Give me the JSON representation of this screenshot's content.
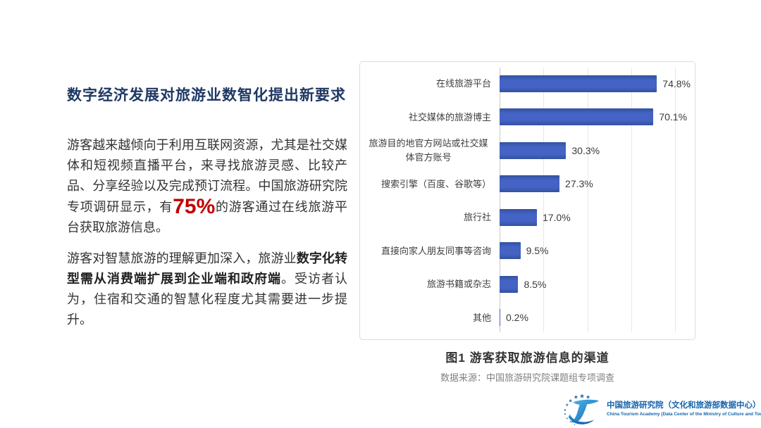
{
  "slide": {
    "title": "数字经济发展对旅游业数智化提出新要求",
    "paragraph1": {
      "before": "游客越来越倾向于利用互联网资源，尤其是社交媒体和短视频直播平台，来寻找旅游灵感、比较产品、分享经验以及完成预订流程。中国旅游研究院专项调研显示，有",
      "highlight": "75%",
      "after": "的游客通过在线旅游平台获取旅游信息。"
    },
    "paragraph2": {
      "before": "游客对智慧旅游的理解更加深入，旅游业",
      "bold": "数字化转型需从消费端扩展到企业端和政府端",
      "after": "。受访者认为，住宿和交通的智慧化程度尤其需要进一步提升。"
    }
  },
  "chart_data": {
    "type": "bar",
    "orientation": "horizontal",
    "title": "图1  游客获取旅游信息的渠道",
    "source": "数据来源：中国旅游研究院课题组专项调查",
    "categories": [
      "在线旅游平台",
      "社交媒体的旅游博主",
      "旅游目的地官方网站或社交媒体官方账号",
      "搜索引擎（百度、谷歌等）",
      "旅行社",
      "直接向家人朋友同事等咨询",
      "旅游书籍或杂志",
      "其他"
    ],
    "values": [
      74.8,
      70.1,
      30.3,
      27.3,
      17.0,
      9.5,
      8.5,
      0.2
    ],
    "value_labels": [
      "74.8%",
      "70.1%",
      "30.3%",
      "27.3%",
      "17.0%",
      "9.5%",
      "8.5%",
      "0.2%"
    ],
    "xlim": [
      0,
      87
    ],
    "gridlines": [
      0,
      20,
      40,
      60,
      80
    ],
    "grid": "vertical-light",
    "legend": "none",
    "bar_color": "#4463c4",
    "bar_color_dark": "#32519e"
  },
  "footer": {
    "org_cn": "中国旅游研究院（文化和旅游部数据中心）",
    "org_en": "China Tourism Academy (Data Center of the Ministry of Culture and Tourism)"
  },
  "colors": {
    "title_navy": "#1f3864",
    "highlight_red": "#c00000",
    "body_text": "#333333",
    "panel_border": "#dcdcdc",
    "logo_blue": "#1564ac"
  }
}
